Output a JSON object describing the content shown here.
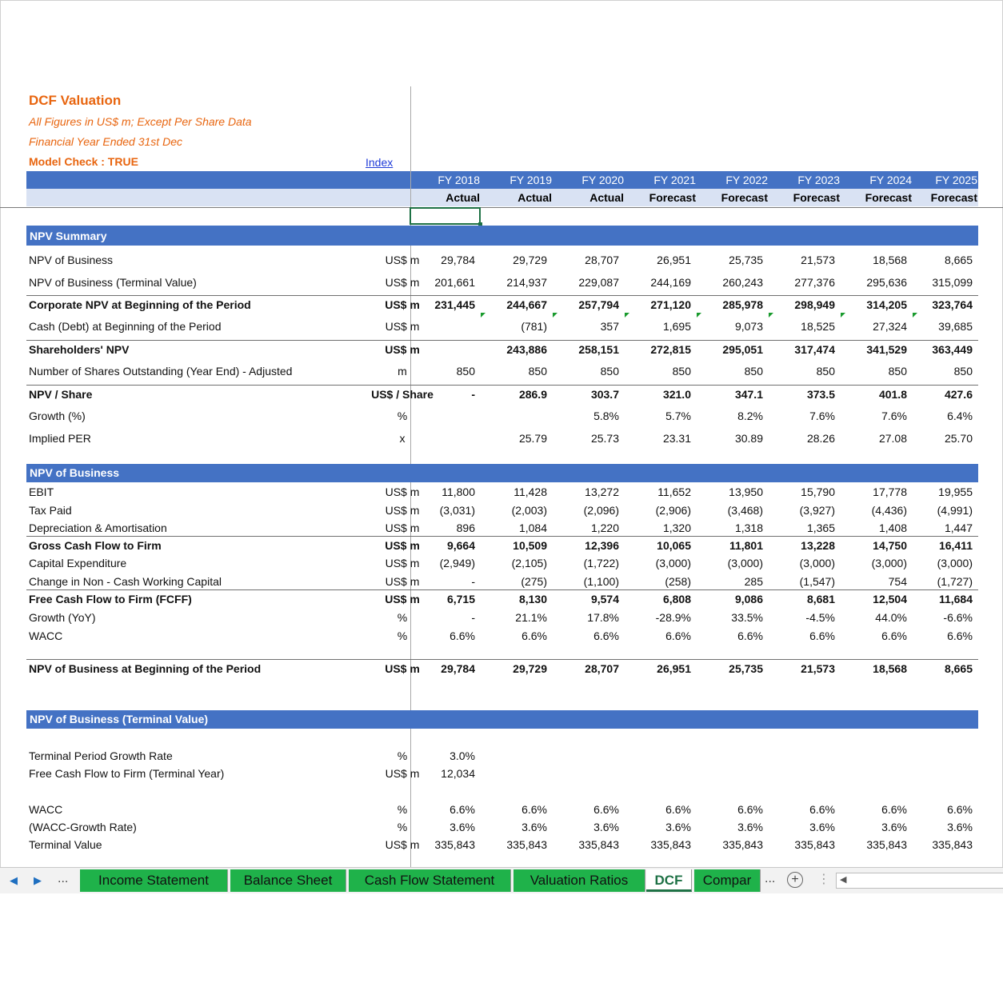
{
  "header": {
    "title": "DCF Valuation",
    "subtitle1": "All Figures in US$ m; Except Per Share Data",
    "subtitle2": "Financial Year Ended 31st Dec",
    "model_check": "Model Check : TRUE",
    "index_link": "Index"
  },
  "columns": [
    {
      "fy": "FY 2018",
      "type": "Actual"
    },
    {
      "fy": "FY 2019",
      "type": "Actual"
    },
    {
      "fy": "FY 2020",
      "type": "Actual"
    },
    {
      "fy": "FY 2021",
      "type": "Forecast"
    },
    {
      "fy": "FY 2022",
      "type": "Forecast"
    },
    {
      "fy": "FY 2023",
      "type": "Forecast"
    },
    {
      "fy": "FY 2024",
      "type": "Forecast"
    },
    {
      "fy": "FY 2025",
      "type": "Forecast"
    }
  ],
  "sections": {
    "npv_summary": "NPV Summary",
    "npv_business": "NPV of Business",
    "npv_terminal": "NPV of Business (Terminal Value)"
  },
  "rows": {
    "npv_business": {
      "label": "NPV of Business",
      "unit": "US$ m",
      "values": [
        "29,784",
        "29,729",
        "28,707",
        "26,951",
        "25,735",
        "21,573",
        "18,568",
        "8,665"
      ]
    },
    "npv_tv": {
      "label": "NPV of Business (Terminal Value)",
      "unit": "US$ m",
      "values": [
        "201,661",
        "214,937",
        "229,087",
        "244,169",
        "260,243",
        "277,376",
        "295,636",
        "315,099"
      ]
    },
    "corp_npv": {
      "label": "Corporate NPV at Beginning of the Period",
      "unit": "US$ m",
      "values": [
        "231,445",
        "244,667",
        "257,794",
        "271,120",
        "285,978",
        "298,949",
        "314,205",
        "323,764"
      ]
    },
    "cash_debt": {
      "label": "Cash (Debt) at Beginning of the Period",
      "unit": "US$ m",
      "values": [
        "",
        "(781)",
        "357",
        "1,695",
        "9,073",
        "18,525",
        "27,324",
        "39,685"
      ]
    },
    "sh_npv": {
      "label": "Shareholders' NPV",
      "unit": "US$ m",
      "values": [
        "",
        "243,886",
        "258,151",
        "272,815",
        "295,051",
        "317,474",
        "341,529",
        "363,449"
      ]
    },
    "shares": {
      "label": "Number of Shares Outstanding (Year End) - Adjusted",
      "unit": "m",
      "values": [
        "850",
        "850",
        "850",
        "850",
        "850",
        "850",
        "850",
        "850"
      ]
    },
    "npv_share": {
      "label": "NPV / Share",
      "unit": "US$ / Share",
      "values": [
        "-",
        "286.9",
        "303.7",
        "321.0",
        "347.1",
        "373.5",
        "401.8",
        "427.6"
      ]
    },
    "growth_pct": {
      "label": "Growth (%)",
      "unit": "%",
      "values": [
        "",
        "",
        "5.8%",
        "5.7%",
        "8.2%",
        "7.6%",
        "7.6%",
        "6.4%"
      ]
    },
    "implied_per": {
      "label": "Implied PER",
      "unit": "x",
      "values": [
        "",
        "25.79",
        "25.73",
        "23.31",
        "30.89",
        "28.26",
        "27.08",
        "25.70"
      ]
    },
    "ebit": {
      "label": "EBIT",
      "unit": "US$ m",
      "values": [
        "11,800",
        "11,428",
        "13,272",
        "11,652",
        "13,950",
        "15,790",
        "17,778",
        "19,955"
      ]
    },
    "tax": {
      "label": "Tax Paid",
      "unit": "US$ m",
      "values": [
        "(3,031)",
        "(2,003)",
        "(2,096)",
        "(2,906)",
        "(3,468)",
        "(3,927)",
        "(4,436)",
        "(4,991)"
      ]
    },
    "da": {
      "label": "Depreciation & Amortisation",
      "unit": "US$ m",
      "values": [
        "896",
        "1,084",
        "1,220",
        "1,320",
        "1,318",
        "1,365",
        "1,408",
        "1,447"
      ]
    },
    "gcf": {
      "label": "Gross Cash Flow to Firm",
      "unit": "US$ m",
      "values": [
        "9,664",
        "10,509",
        "12,396",
        "10,065",
        "11,801",
        "13,228",
        "14,750",
        "16,411"
      ]
    },
    "capex": {
      "label": "Capital Expenditure",
      "unit": "US$ m",
      "values": [
        "(2,949)",
        "(2,105)",
        "(1,722)",
        "(3,000)",
        "(3,000)",
        "(3,000)",
        "(3,000)",
        "(3,000)"
      ]
    },
    "nwc": {
      "label": "Change in Non - Cash Working Capital",
      "unit": "US$ m",
      "values": [
        "-",
        "(275)",
        "(1,100)",
        "(258)",
        "285",
        "(1,547)",
        "754",
        "(1,727)"
      ]
    },
    "fcff": {
      "label": "Free Cash Flow to Firm (FCFF)",
      "unit": "US$ m",
      "values": [
        "6,715",
        "8,130",
        "9,574",
        "6,808",
        "9,086",
        "8,681",
        "12,504",
        "11,684"
      ]
    },
    "growth_yoy": {
      "label": "Growth (YoY)",
      "unit": "%",
      "values": [
        "-",
        "21.1%",
        "17.8%",
        "-28.9%",
        "33.5%",
        "-4.5%",
        "44.0%",
        "-6.6%"
      ]
    },
    "wacc1": {
      "label": "WACC",
      "unit": "%",
      "values": [
        "6.6%",
        "6.6%",
        "6.6%",
        "6.6%",
        "6.6%",
        "6.6%",
        "6.6%",
        "6.6%"
      ]
    },
    "npv_begin": {
      "label": "NPV of Business at Beginning of the Period",
      "unit": "US$ m",
      "values": [
        "29,784",
        "29,729",
        "28,707",
        "26,951",
        "25,735",
        "21,573",
        "18,568",
        "8,665"
      ]
    },
    "tg_rate": {
      "label": "Terminal Period Growth Rate",
      "unit": "%",
      "values": [
        "3.0%",
        "",
        "",
        "",
        "",
        "",
        "",
        ""
      ]
    },
    "fcff_tv": {
      "label": "Free Cash Flow to Firm (Terminal Year)",
      "unit": "US$ m",
      "values": [
        "12,034",
        "",
        "",
        "",
        "",
        "",
        "",
        ""
      ]
    },
    "wacc2": {
      "label": "WACC",
      "unit": "%",
      "values": [
        "6.6%",
        "6.6%",
        "6.6%",
        "6.6%",
        "6.6%",
        "6.6%",
        "6.6%",
        "6.6%"
      ]
    },
    "wacc_growth": {
      "label": "(WACC-Growth Rate)",
      "unit": "%",
      "values": [
        "3.6%",
        "3.6%",
        "3.6%",
        "3.6%",
        "3.6%",
        "3.6%",
        "3.6%",
        "3.6%"
      ]
    },
    "terminal_value": {
      "label": "Terminal Value",
      "unit": "US$ m",
      "values": [
        "335,843",
        "335,843",
        "335,843",
        "335,843",
        "335,843",
        "335,843",
        "335,843",
        "335,843"
      ]
    }
  },
  "tabs": {
    "items": [
      "Income Statement",
      "Balance Sheet",
      "Cash Flow Statement",
      "Valuation Ratios",
      "DCF",
      "Compar"
    ],
    "active": "DCF",
    "ellipsis": "...",
    "add_icon": "plus-circle-icon"
  },
  "colors": {
    "accent_blue": "#4472c4",
    "light_blue": "#d9e2f3",
    "orange": "#e8650f",
    "tab_green": "#1fb24a"
  }
}
